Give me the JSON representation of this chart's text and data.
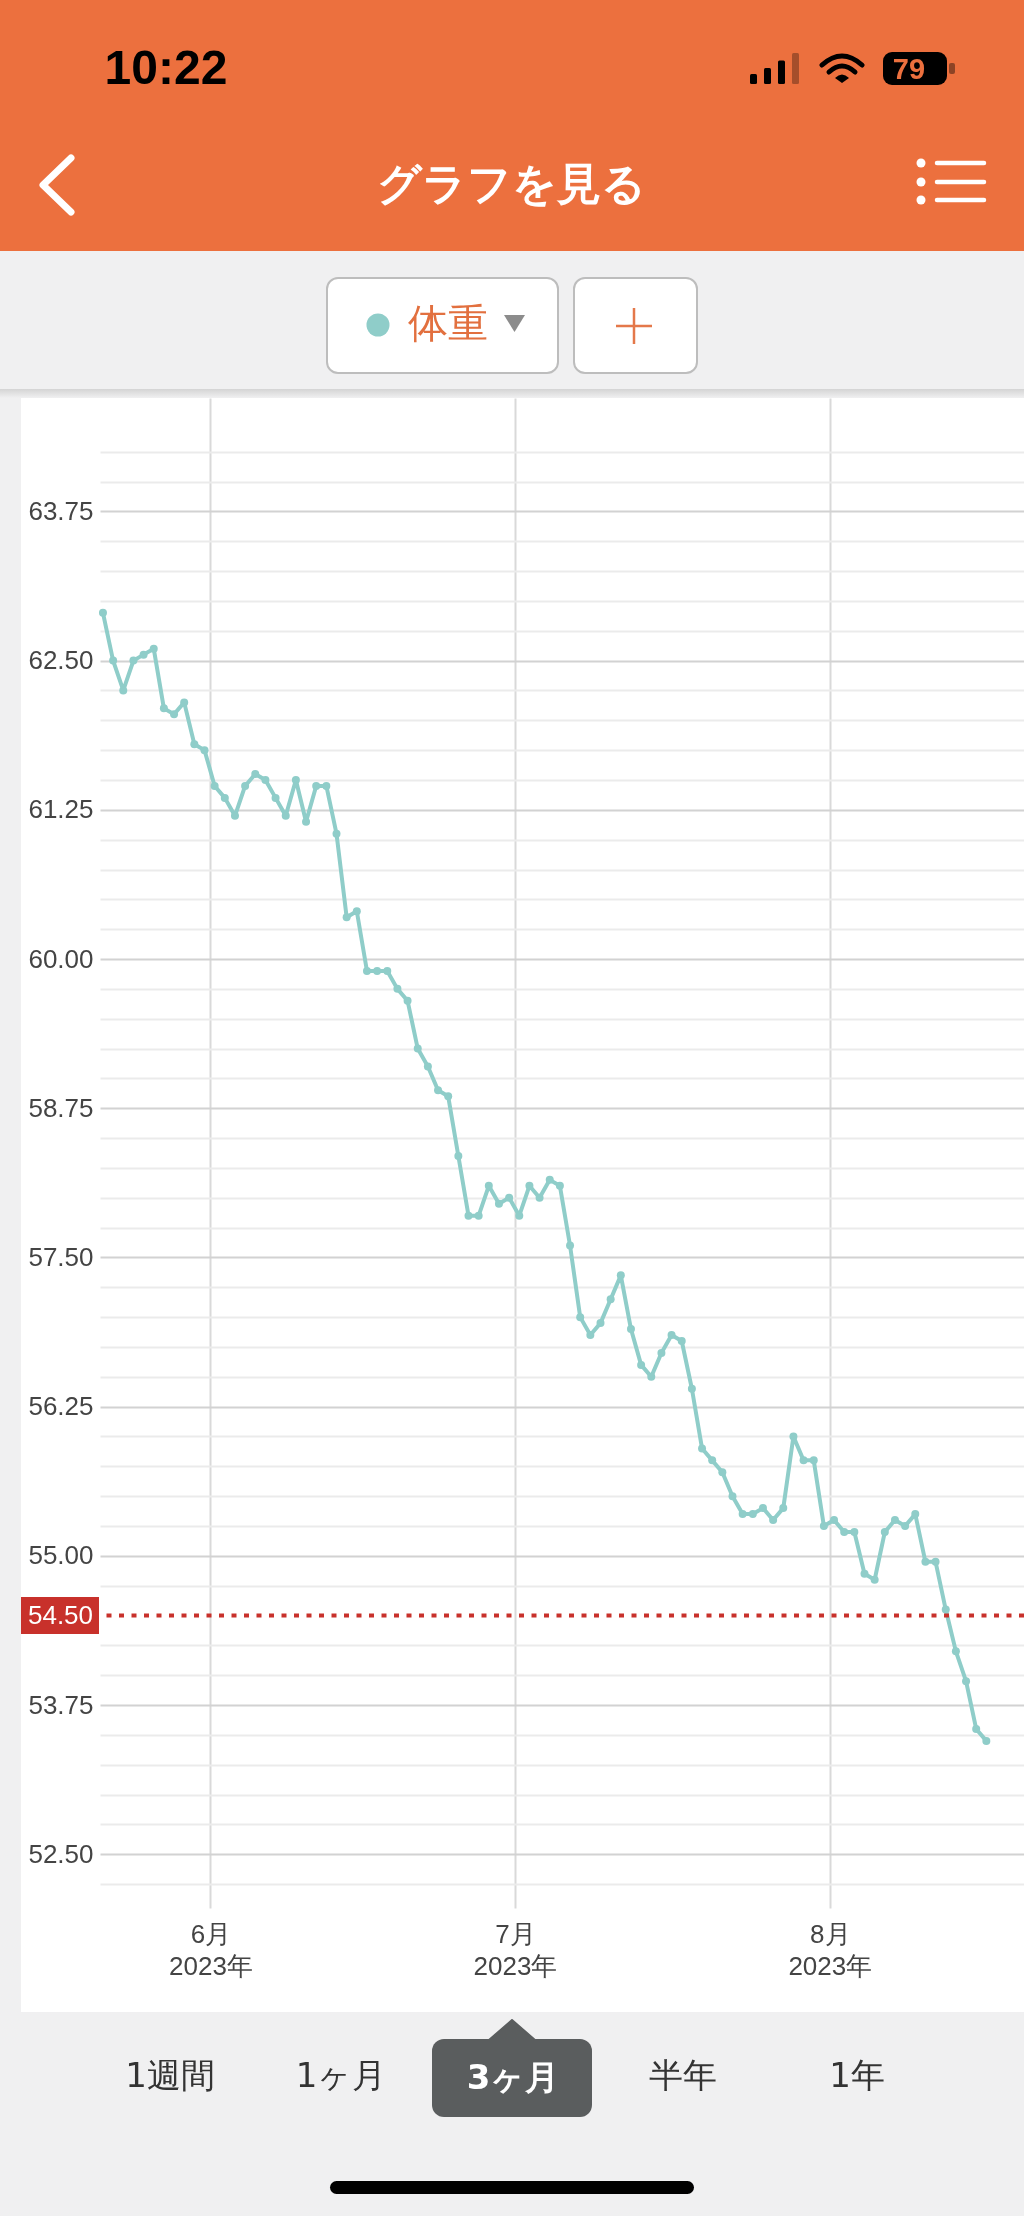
{
  "chart_data": {
    "type": "line",
    "title": "グラフを見る",
    "annotations": [
      "10:22",
      "79",
      "1週間",
      "1ヶ月",
      "3ヶ月",
      "半年",
      "1年"
    ],
    "x": [
      "2023-05-21T10:00",
      "2023-05-22T10:00",
      "2023-05-23T10:00",
      "2023-05-24T10:00",
      "2023-05-25T10:00",
      "2023-05-26T10:00",
      "2023-05-27T10:00",
      "2023-05-28T10:00",
      "2023-05-29T10:00",
      "2023-05-30T10:00",
      "2023-05-31T10:00",
      "2023-06-01T10:00",
      "2023-06-02T10:00",
      "2023-06-03T10:00",
      "2023-06-04T10:00",
      "2023-06-05T10:00",
      "2023-06-06T10:00",
      "2023-06-07T10:00",
      "2023-06-08T10:00",
      "2023-06-09T10:00",
      "2023-06-10T10:00",
      "2023-06-11T10:00",
      "2023-06-12T10:00",
      "2023-06-13T10:00",
      "2023-06-14T10:00",
      "2023-06-15T10:00",
      "2023-06-16T10:00",
      "2023-06-17T10:00",
      "2023-06-18T10:00",
      "2023-06-19T10:00",
      "2023-06-20T10:00",
      "2023-06-21T10:00",
      "2023-06-22T10:00",
      "2023-06-23T10:00",
      "2023-06-24T10:00",
      "2023-06-25T10:00",
      "2023-06-26T10:00",
      "2023-06-27T10:00",
      "2023-06-28T10:00",
      "2023-06-29T10:00",
      "2023-06-30T10:00",
      "2023-07-01T10:00",
      "2023-07-02T10:00",
      "2023-07-03T10:00",
      "2023-07-04T10:00",
      "2023-07-05T10:00",
      "2023-07-06T10:00",
      "2023-07-07T10:00",
      "2023-07-08T10:00",
      "2023-07-09T10:00",
      "2023-07-10T10:00",
      "2023-07-11T10:00",
      "2023-07-12T10:00",
      "2023-07-13T10:00",
      "2023-07-14T10:00",
      "2023-07-15T10:00",
      "2023-07-16T10:00",
      "2023-07-17T10:00",
      "2023-07-18T10:00",
      "2023-07-19T10:00",
      "2023-07-20T10:00",
      "2023-07-21T10:00",
      "2023-07-22T10:00",
      "2023-07-23T10:00",
      "2023-07-24T10:00",
      "2023-07-25T10:00",
      "2023-07-26T10:00",
      "2023-07-27T10:00",
      "2023-07-28T10:00",
      "2023-07-29T10:00",
      "2023-07-30T10:00",
      "2023-07-31T10:00",
      "2023-08-01T10:00",
      "2023-08-02T10:00",
      "2023-08-03T10:00",
      "2023-08-04T10:00",
      "2023-08-05T10:00",
      "2023-08-06T10:00",
      "2023-08-07T10:00",
      "2023-08-08T10:00",
      "2023-08-09T10:00",
      "2023-08-10T10:00",
      "2023-08-11T10:00",
      "2023-08-12T10:00",
      "2023-08-13T10:00",
      "2023-08-14T10:00",
      "2023-08-15T10:00",
      "2023-08-16T10:00"
    ],
    "series": [
      {
        "name": "体重",
        "color": "#8fcdc9",
        "values": [
          62.9,
          62.5,
          62.25,
          62.5,
          62.55,
          62.6,
          62.1,
          62.05,
          62.15,
          61.8,
          61.75,
          61.45,
          61.35,
          61.2,
          61.45,
          61.55,
          61.5,
          61.35,
          61.2,
          61.5,
          61.15,
          61.45,
          61.45,
          61.05,
          60.35,
          60.4,
          59.9,
          59.9,
          59.9,
          59.75,
          59.65,
          59.25,
          59.1,
          58.9,
          58.85,
          58.35,
          57.85,
          57.85,
          58.1,
          57.95,
          58.0,
          57.85,
          58.1,
          58.0,
          58.15,
          58.1,
          57.6,
          57.0,
          56.85,
          56.95,
          57.15,
          57.35,
          56.9,
          56.6,
          56.5,
          56.7,
          56.85,
          56.8,
          56.4,
          55.9,
          55.8,
          55.7,
          55.5,
          55.35,
          55.35,
          55.4,
          55.3,
          55.4,
          56.0,
          55.8,
          55.8,
          55.25,
          55.3,
          55.2,
          55.2,
          54.85,
          54.8,
          55.2,
          55.3,
          55.25,
          55.35,
          54.95,
          54.95,
          54.55,
          54.2,
          53.95,
          53.55,
          53.45
        ]
      }
    ],
    "xlim": [
      "2023-05-21T03:00",
      "2023-08-20T03:00"
    ],
    "xticks": [
      {
        "value": "2023-06-01",
        "label": "6月\n2023年"
      },
      {
        "value": "2023-07-01",
        "label": "7月\n2023年"
      },
      {
        "value": "2023-08-01",
        "label": "8月\n2023年"
      }
    ],
    "ylim": [
      52.05,
      64.7
    ],
    "yticks": [
      {
        "value": 52.25,
        "label": null
      },
      {
        "value": 52.5,
        "label": "52.50"
      },
      {
        "value": 52.75,
        "label": null
      },
      {
        "value": 53.0,
        "label": null
      },
      {
        "value": 53.25,
        "label": null
      },
      {
        "value": 53.5,
        "label": null
      },
      53.75,
      {
        "value": 54.0,
        "label": null
      },
      {
        "value": 54.25,
        "label": null
      },
      {
        "value": 54.75,
        "label": null
      },
      {
        "value": 55.0,
        "label": "55.00"
      },
      {
        "value": 55.25,
        "label": null
      },
      {
        "value": 55.5,
        "label": null
      },
      {
        "value": 55.75,
        "label": null
      },
      {
        "value": 56.0,
        "label": null
      },
      56.25,
      {
        "value": 56.5,
        "label": null
      },
      {
        "value": 56.75,
        "label": null
      },
      {
        "value": 57.0,
        "label": null
      },
      {
        "value": 57.25,
        "label": null
      },
      {
        "value": 57.5,
        "label": "57.50"
      },
      {
        "value": 57.75,
        "label": null
      },
      {
        "value": 58.0,
        "label": null
      },
      {
        "value": 58.25,
        "label": null
      },
      {
        "value": 58.5,
        "label": null
      },
      58.75,
      {
        "value": 59.0,
        "label": null
      },
      {
        "value": 59.25,
        "label": null
      },
      {
        "value": 59.5,
        "label": null
      },
      {
        "value": 59.75,
        "label": null
      },
      {
        "value": 60.0,
        "label": "60.00"
      },
      {
        "value": 60.25,
        "label": null
      },
      {
        "value": 60.5,
        "label": null
      },
      {
        "value": 60.75,
        "label": null
      },
      {
        "value": 61.0,
        "label": null
      },
      61.25,
      {
        "value": 61.5,
        "label": null
      },
      {
        "value": 61.75,
        "label": null
      },
      {
        "value": 62.0,
        "label": null
      },
      {
        "value": 62.25,
        "label": null
      },
      {
        "value": 62.5,
        "label": "62.50"
      },
      {
        "value": 62.75,
        "label": null
      },
      {
        "value": 63.0,
        "label": null
      },
      {
        "value": 63.25,
        "label": null
      },
      {
        "value": 63.5,
        "label": null
      },
      63.75,
      {
        "value": 64.0,
        "label": null
      },
      {
        "value": 64.25,
        "label": null
      }
    ],
    "ref_lines": [
      {
        "axis": "y",
        "value": 54.5,
        "label": "54.50",
        "color": "#c8312b",
        "line_style": "dotted"
      }
    ],
    "grid": true,
    "legend": "top",
    "marker": "circle"
  }
}
